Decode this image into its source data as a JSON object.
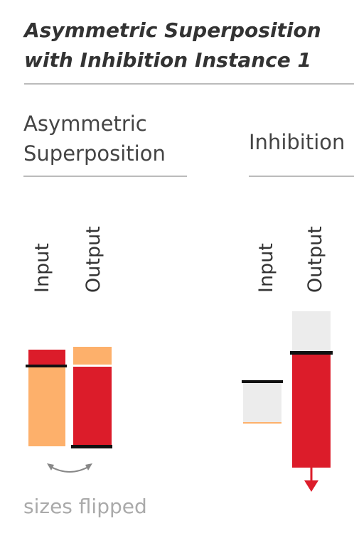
{
  "title": {
    "lines": [
      "Asymmetric Superposition",
      "with Inhibition Instance 1"
    ]
  },
  "sections": [
    {
      "heading": [
        "Asymmetric",
        "Superposition"
      ],
      "columns": [
        "Input",
        "Output"
      ],
      "note": "sizes flipped"
    },
    {
      "heading": [
        "Inhibition"
      ],
      "columns": [
        "Input",
        "Output"
      ]
    }
  ]
}
